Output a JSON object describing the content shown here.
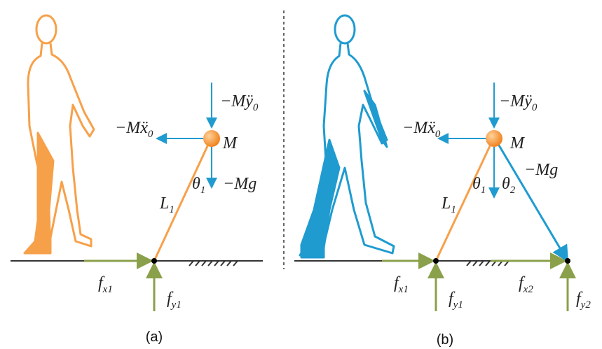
{
  "panel_a": {
    "caption": "(a)",
    "labels": [
      {
        "main": "−Mÿ",
        "sub": "0"
      },
      {
        "main": "−Mẍ",
        "sub": "0"
      },
      {
        "main": "M"
      },
      {
        "main": "θ",
        "sub": "1"
      },
      {
        "main": "−Mg"
      },
      {
        "main": "L",
        "sub": "1"
      },
      {
        "main": "f",
        "sub": "x1"
      },
      {
        "main": "f",
        "sub": "y1"
      }
    ]
  },
  "panel_b": {
    "caption": "(b)",
    "labels": [
      {
        "main": "−Mÿ",
        "sub": "0"
      },
      {
        "main": "−Mẍ",
        "sub": "0"
      },
      {
        "main": "M"
      },
      {
        "main": "θ",
        "sub": "1"
      },
      {
        "main": "θ",
        "sub": "2"
      },
      {
        "main": "−Mg"
      },
      {
        "main": "L",
        "sub": "1"
      },
      {
        "main": "f",
        "sub": "x1"
      },
      {
        "main": "f",
        "sub": "y1"
      },
      {
        "main": "f",
        "sub": "x2"
      },
      {
        "main": "f",
        "sub": "y2"
      }
    ]
  }
}
